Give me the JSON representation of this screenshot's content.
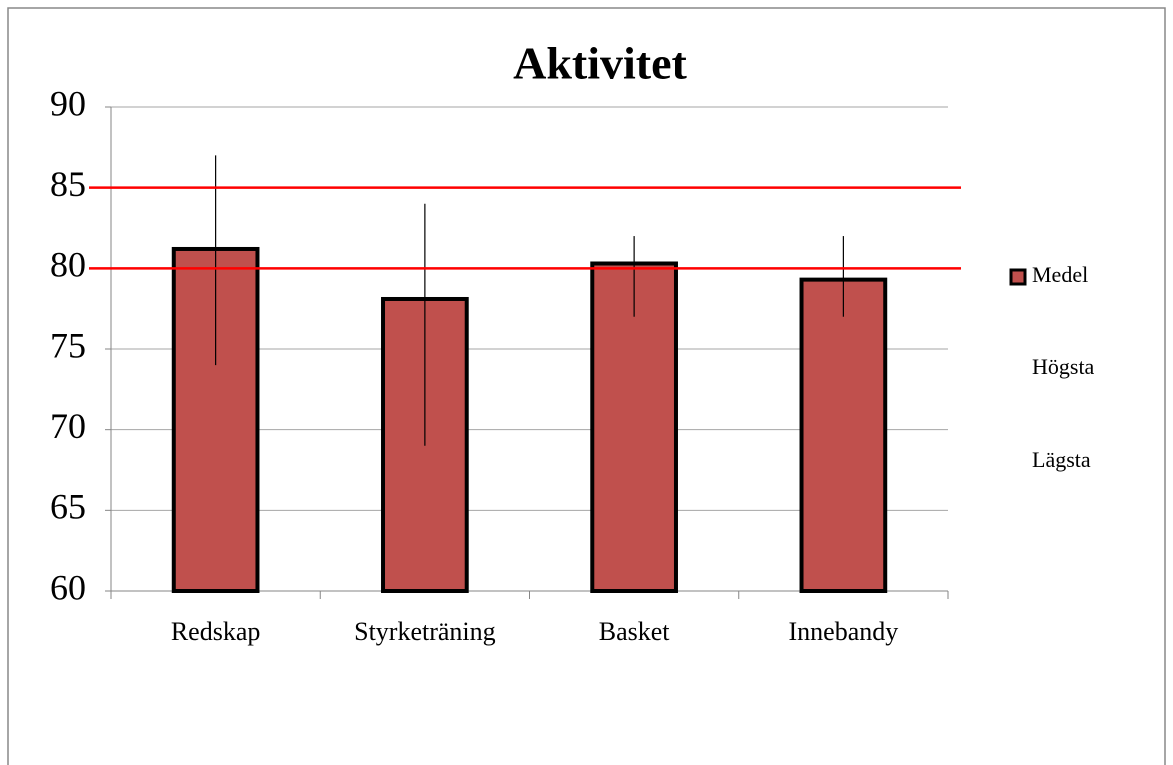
{
  "chart_data": {
    "type": "bar",
    "title": "Aktivitet",
    "categories": [
      "Redskap",
      "Styrketräning",
      "Basket",
      "Innebandy"
    ],
    "series": [
      {
        "name": "Medel",
        "color": "#c0504d",
        "values": [
          81.2,
          78.1,
          80.3,
          79.3
        ]
      },
      {
        "name": "Högsta",
        "color": "none",
        "values": [
          87,
          84,
          82,
          82
        ]
      },
      {
        "name": "Lägsta",
        "color": "none",
        "values": [
          74,
          69,
          77,
          77
        ]
      }
    ],
    "reference_lines": [
      85,
      80
    ],
    "reference_color": "#ff0000",
    "ylim": [
      60,
      90
    ],
    "yticks": [
      60,
      65,
      70,
      75,
      80,
      85,
      90
    ],
    "grid": true,
    "legend": "right"
  }
}
